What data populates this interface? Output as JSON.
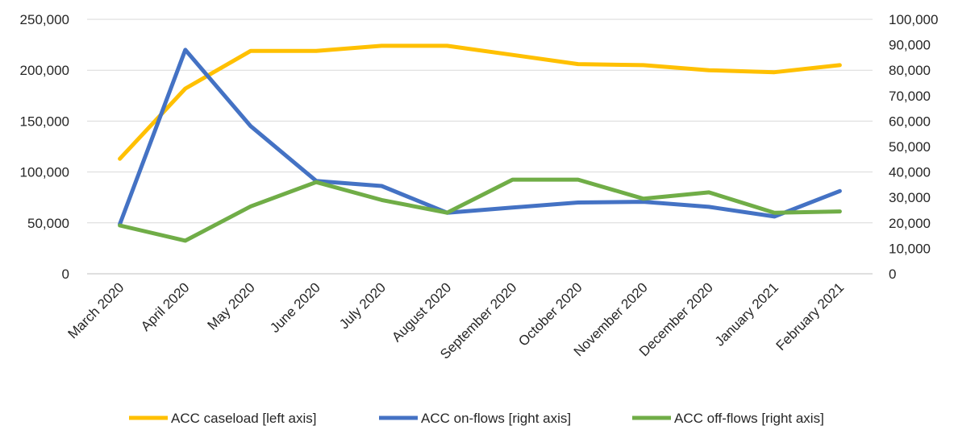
{
  "chart_data": {
    "type": "line",
    "title": "",
    "categories": [
      "March 2020",
      "April 2020",
      "May 2020",
      "June 2020",
      "July 2020",
      "August 2020",
      "September 2020",
      "October 2020",
      "November 2020",
      "December 2020",
      "January 2021",
      "February 2021"
    ],
    "y_left": {
      "range": [
        0,
        250000
      ],
      "ticks": [
        0,
        50000,
        100000,
        150000,
        200000,
        250000
      ],
      "tick_labels": [
        "0",
        "50,000",
        "100,000",
        "150,000",
        "200,000",
        "250,000"
      ]
    },
    "y_right": {
      "range": [
        0,
        100000
      ],
      "ticks": [
        0,
        10000,
        20000,
        30000,
        40000,
        50000,
        60000,
        70000,
        80000,
        90000,
        100000
      ],
      "tick_labels": [
        "0",
        "10,000",
        "20,000",
        "30,000",
        "40,000",
        "50,000",
        "60,000",
        "70,000",
        "80,000",
        "90,000",
        "100,000"
      ]
    },
    "grid": true,
    "legend_position": "bottom",
    "series": [
      {
        "name": "ACC caseload [left axis]",
        "axis": "left",
        "color": "#FFC000",
        "values": [
          113000,
          182000,
          219000,
          219000,
          224000,
          224000,
          215000,
          206000,
          205000,
          200000,
          198000,
          205000
        ]
      },
      {
        "name": "ACC on-flows [right axis]",
        "axis": "right",
        "color": "#4472C4",
        "values": [
          19500,
          88000,
          58000,
          36500,
          34500,
          24000,
          26000,
          28000,
          28300,
          26300,
          22500,
          32500
        ]
      },
      {
        "name": "ACC off-flows [right axis]",
        "axis": "right",
        "color": "#70AD47",
        "values": [
          19000,
          13000,
          26500,
          36000,
          29000,
          24000,
          37000,
          37000,
          29500,
          32000,
          24000,
          24500
        ]
      }
    ]
  }
}
